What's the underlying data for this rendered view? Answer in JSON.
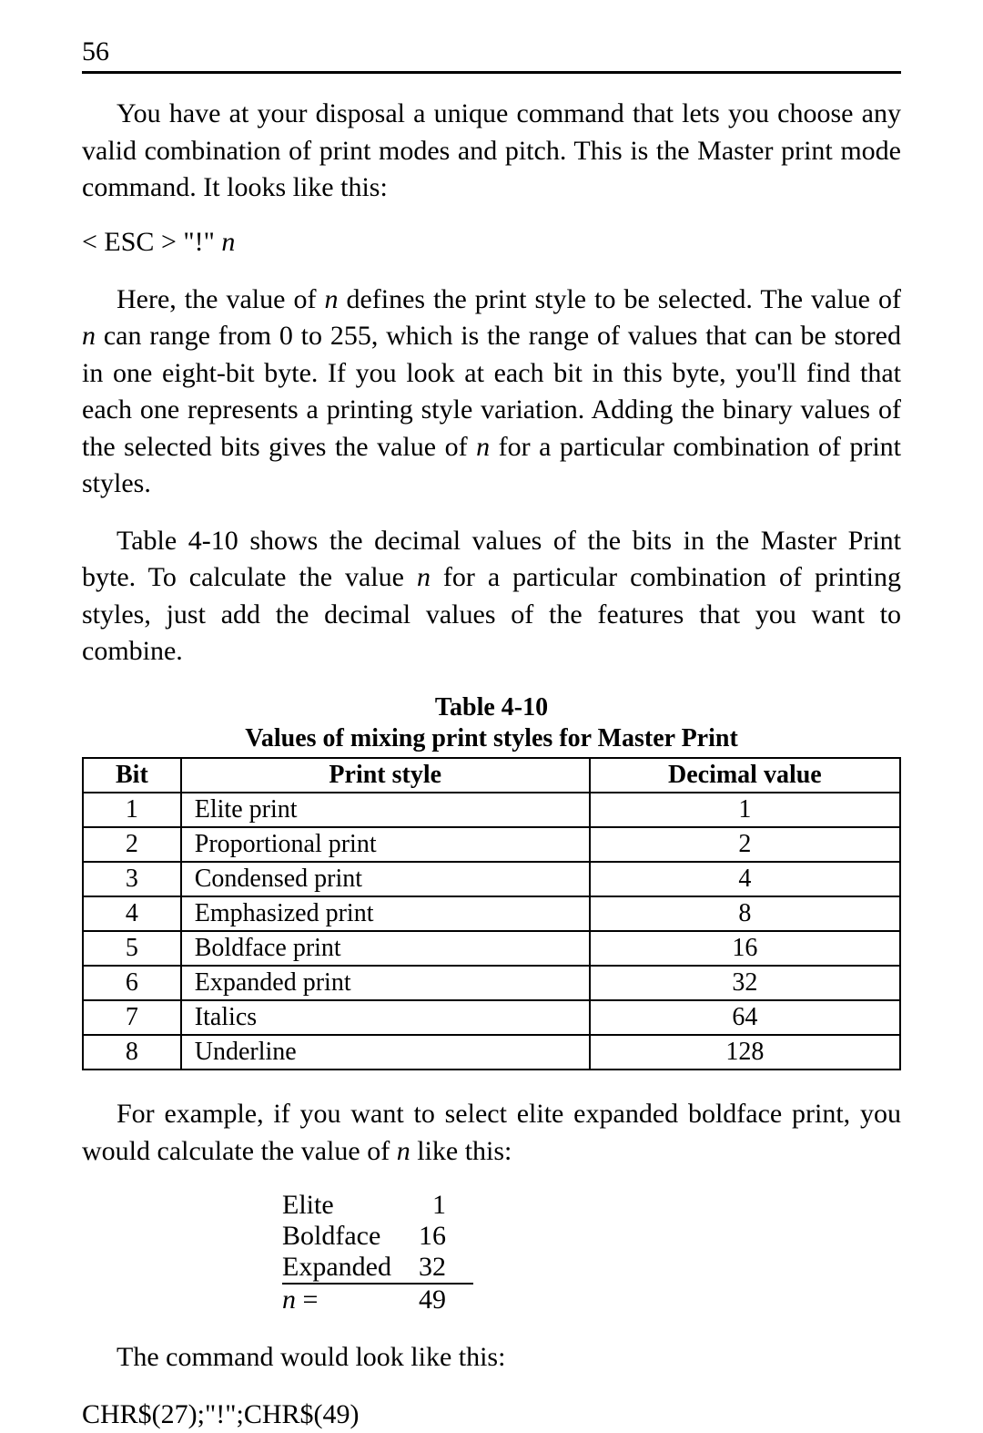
{
  "page_number": "56",
  "paragraphs": {
    "p1": "You have at your disposal a unique command that lets you choose any valid combination of print modes and pitch. This is the Master print mode command. It looks like this:",
    "code": "< ESC >  \"!\"  ",
    "code_var": "n",
    "p2a": "Here, the value of ",
    "p2b": " defines the print style to be selected. The value of ",
    "p2c": " can range from 0 to 255, which is the range of values that can be stored in one eight-bit byte. If you look at each bit in this byte, you'll find that each one represents a printing style variation. Adding the binary values of the selected bits gives the value of ",
    "p2d": " for a particular combination of print styles.",
    "p3a": "Table 4-10 shows the decimal values of the bits in the Master Print byte. To calculate the value ",
    "p3b": " for a particular combination of printing styles, just add the decimal values of the features that you want to combine.",
    "p4a": "For example, if you want to select elite expanded boldface print, you would calculate the value of ",
    "p4b": " like this:",
    "p5": "The command would look like this:",
    "cmd": "CHR$(27);\"!\";CHR$(49)"
  },
  "n": "n",
  "table": {
    "caption": "Table 4-10",
    "subcaption": "Values of mixing print styles for Master Print",
    "headers": {
      "bit": "Bit",
      "style": "Print style",
      "val": "Decimal value"
    },
    "rows": [
      {
        "bit": "1",
        "style": "Elite print",
        "val": "1"
      },
      {
        "bit": "2",
        "style": "Proportional print",
        "val": "2"
      },
      {
        "bit": "3",
        "style": "Condensed print",
        "val": "4"
      },
      {
        "bit": "4",
        "style": "Emphasized print",
        "val": "8"
      },
      {
        "bit": "5",
        "style": "Boldface print",
        "val": "16"
      },
      {
        "bit": "6",
        "style": "Expanded print",
        "val": "32"
      },
      {
        "bit": "7",
        "style": "Italics",
        "val": "64"
      },
      {
        "bit": "8",
        "style": "Underline",
        "val": "128"
      }
    ]
  },
  "calc": {
    "rows": [
      {
        "label": "Elite",
        "val": "1"
      },
      {
        "label": "Boldface",
        "val": "16"
      },
      {
        "label": "Expanded",
        "val": "32"
      }
    ],
    "sum_label_prefix": "n",
    "sum_label_suffix": " =",
    "sum_val": "49"
  }
}
